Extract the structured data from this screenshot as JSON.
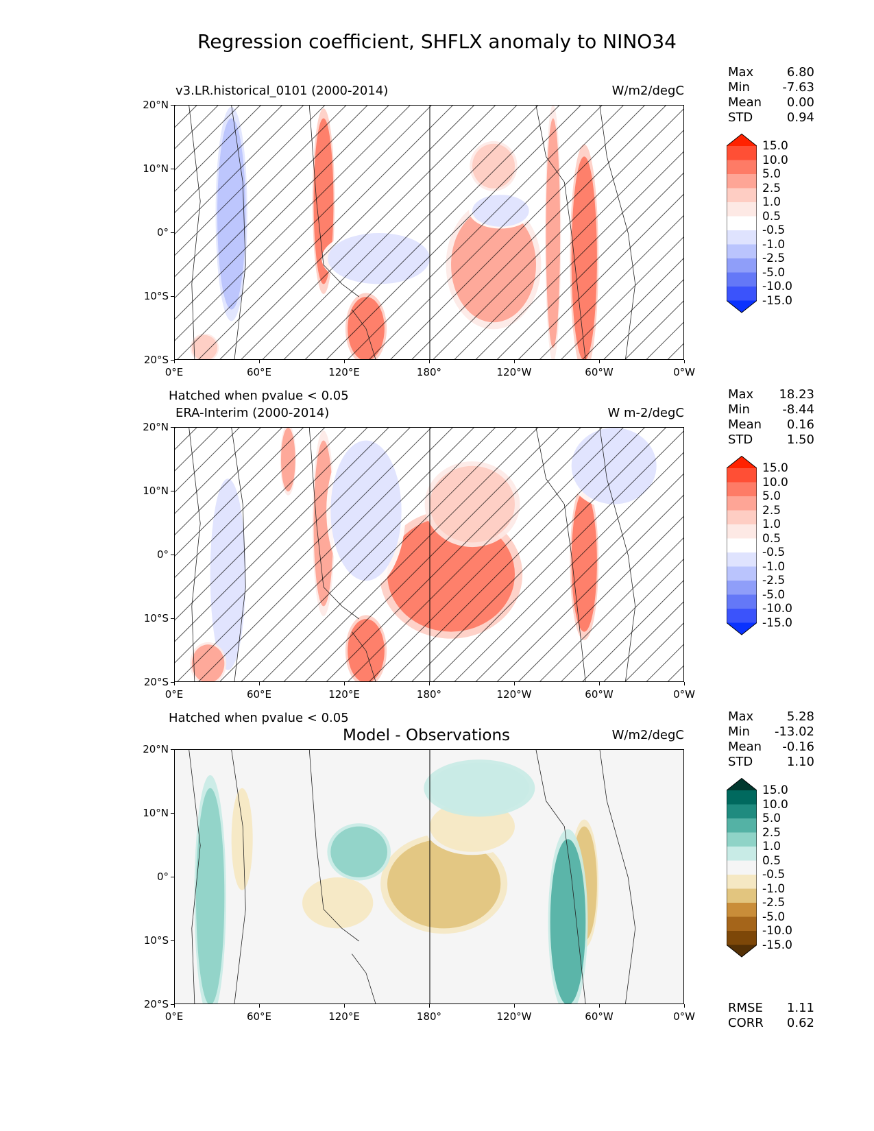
{
  "figure_title": "Regression coefficient, SHFLX anomaly to NINO34",
  "colorbar_levels": [
    "15.0",
    "10.0",
    "5.0",
    "2.5",
    "1.0",
    "0.5",
    "-0.5",
    "-1.0",
    "-2.5",
    "-5.0",
    "-10.0",
    "-15.0"
  ],
  "colors": {
    "red_blue": [
      "#ff2200",
      "#ff4f35",
      "#fe7b66",
      "#fea596",
      "#fecdc3",
      "#fde9e5",
      "#ffffff",
      "#dfe3fe",
      "#bac4fd",
      "#8f9ef9",
      "#6478f7",
      "#3b53fb",
      "#0a32fe"
    ],
    "teal_brown": [
      "#00382e",
      "#00695e",
      "#1f8b7f",
      "#54b2a5",
      "#8fd3c7",
      "#c8ebe6",
      "#f5f5f5",
      "#f5e8c3",
      "#e2c57f",
      "#c98d39",
      "#a5651a",
      "#7d4708",
      "#543005"
    ]
  },
  "panels": [
    {
      "title": "v3.LR.historical_0101 (2000-2014)",
      "units": "W/m2/degC",
      "note": "Hatched when pvalue < 0.05",
      "stats": {
        "max_label": "Max",
        "max": "6.80",
        "min_label": "Min",
        "min": "-7.63",
        "mean_label": "Mean",
        "mean": "0.00",
        "std_label": "STD",
        "std": "0.94"
      }
    },
    {
      "title": "ERA-Interim (2000-2014)",
      "units": "W m-2/degC",
      "note": "Hatched when pvalue < 0.05",
      "stats": {
        "max_label": "Max",
        "max": "18.23",
        "min_label": "Min",
        "min": "-8.44",
        "mean_label": "Mean",
        "mean": "0.16",
        "std_label": "STD",
        "std": "1.50"
      }
    },
    {
      "title": "Model - Observations",
      "units": "W/m2/degC",
      "stats": {
        "max_label": "Max",
        "max": "5.28",
        "min_label": "Min",
        "min": "-13.02",
        "mean_label": "Mean",
        "mean": "-0.16",
        "std_label": "STD",
        "std": "1.10"
      },
      "skill": {
        "rmse_label": "RMSE",
        "rmse": "1.11",
        "corr_label": "CORR",
        "corr": "0.62"
      }
    }
  ],
  "chart_data": {
    "type": "heatmap",
    "title": "Regression coefficient, SHFLX anomaly to NINO34",
    "x_ticks": [
      "0°E",
      "60°E",
      "120°E",
      "180°",
      "120°W",
      "60°W",
      "0°W"
    ],
    "y_ticks": [
      "20°N",
      "10°N",
      "0°",
      "10°S",
      "20°S"
    ],
    "xlim": [
      0,
      360
    ],
    "ylim": [
      -20,
      20
    ],
    "x_tick_values": [
      0,
      60,
      120,
      180,
      240,
      300,
      360
    ],
    "y_tick_values": [
      20,
      10,
      0,
      -10,
      -20
    ],
    "colorbar_levels": [
      15.0,
      10.0,
      5.0,
      2.5,
      1.0,
      0.5,
      -0.5,
      -1.0,
      -2.5,
      -5.0,
      -10.0,
      -15.0
    ],
    "panels": [
      {
        "name": "v3.LR.historical_0101 (2000-2014)",
        "units": "W/m2/degC",
        "hatched": true,
        "features": [
          {
            "lon": [
              195,
              255
            ],
            "lat": [
              -14,
              4
            ],
            "value": 2.5
          },
          {
            "lon": [
              210,
              240
            ],
            "lat": [
              7,
              14
            ],
            "value": 1.0
          },
          {
            "lon": [
              262,
              272
            ],
            "lat": [
              -18,
              18
            ],
            "value": 2.5
          },
          {
            "lon": [
              280,
              298
            ],
            "lat": [
              -20,
              12
            ],
            "value": 5.0
          },
          {
            "lon": [
              98,
              112
            ],
            "lat": [
              -8,
              18
            ],
            "value": 5.0
          },
          {
            "lon": [
              122,
              148
            ],
            "lat": [
              -20,
              -10
            ],
            "value": 5.0
          },
          {
            "lon": [
              30,
              50
            ],
            "lat": [
              -12,
              18
            ],
            "value": -2.5
          },
          {
            "lon": [
              108,
              180
            ],
            "lat": [
              -8,
              0
            ],
            "value": -1.0
          },
          {
            "lon": [
              210,
              250
            ],
            "lat": [
              1,
              6
            ],
            "value": -1.0
          },
          {
            "lon": [
              12,
              30
            ],
            "lat": [
              -20,
              -16
            ],
            "value": 1.0
          }
        ]
      },
      {
        "name": "ERA-Interim (2000-2014)",
        "units": "W m-2/degC",
        "hatched": true,
        "features": [
          {
            "lon": [
              150,
              240
            ],
            "lat": [
              -12,
              6
            ],
            "value": 5.0
          },
          {
            "lon": [
              180,
              240
            ],
            "lat": [
              2,
              14
            ],
            "value": 1.0
          },
          {
            "lon": [
              280,
              298
            ],
            "lat": [
              -12,
              10
            ],
            "value": 5.0
          },
          {
            "lon": [
              122,
              148
            ],
            "lat": [
              -20,
              -10
            ],
            "value": 5.0
          },
          {
            "lon": [
              98,
              112
            ],
            "lat": [
              -8,
              18
            ],
            "value": 2.5
          },
          {
            "lon": [
              75,
              85
            ],
            "lat": [
              10,
              20
            ],
            "value": 2.5
          },
          {
            "lon": [
              280,
              340
            ],
            "lat": [
              8,
              20
            ],
            "value": -1.0
          },
          {
            "lon": [
              110,
              160
            ],
            "lat": [
              -4,
              18
            ],
            "value": -1.0
          },
          {
            "lon": [
              25,
              50
            ],
            "lat": [
              -18,
              12
            ],
            "value": -1.0
          },
          {
            "lon": [
              12,
              35
            ],
            "lat": [
              -20,
              -14
            ],
            "value": 2.5
          }
        ]
      },
      {
        "name": "Model - Observations",
        "units": "W/m2/degC",
        "hatched": false,
        "features": [
          {
            "lon": [
              150,
              230
            ],
            "lat": [
              -8,
              6
            ],
            "value": -2.5
          },
          {
            "lon": [
              180,
              240
            ],
            "lat": [
              4,
              12
            ],
            "value": -1.0
          },
          {
            "lon": [
              280,
              298
            ],
            "lat": [
              -10,
              8
            ],
            "value": -2.5
          },
          {
            "lon": [
              40,
              55
            ],
            "lat": [
              -2,
              14
            ],
            "value": -1.0
          },
          {
            "lon": [
              90,
              140
            ],
            "lat": [
              -8,
              0
            ],
            "value": -1.0
          },
          {
            "lon": [
              265,
              290
            ],
            "lat": [
              -20,
              6
            ],
            "value": 2.5
          },
          {
            "lon": [
              15,
              35
            ],
            "lat": [
              -20,
              14
            ],
            "value": 1.0
          },
          {
            "lon": [
              110,
              150
            ],
            "lat": [
              0,
              8
            ],
            "value": 1.0
          },
          {
            "lon": [
              180,
              250
            ],
            "lat": [
              10,
              18
            ],
            "value": 0.5
          }
        ]
      }
    ]
  }
}
